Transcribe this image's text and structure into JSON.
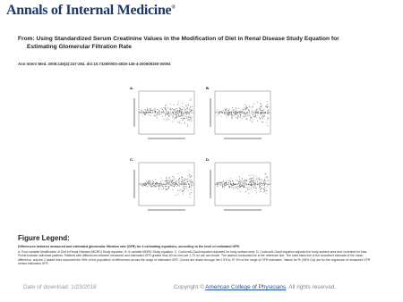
{
  "header": {
    "logo": "Annals of Internal Medicine",
    "logo_mark": "®",
    "title": "From: Using Standardized Serum Creatinine Values in the Modification of Diet in Renal Disease Study Equation for Estimating Glomerular Filtration Rate",
    "citation": "Ann Intern Med. 2006;145(4):247-254. doi:10.7326/0003-4819-145-4-200608150-00004"
  },
  "figure": {
    "panels": [
      {
        "label": "A."
      },
      {
        "label": "B."
      },
      {
        "label": "C."
      },
      {
        "label": "D."
      }
    ]
  },
  "legend": {
    "heading": "Figure Legend:",
    "caption": "Differences between measured and estimated glomerular filtration rate (GFR) for 4 estimating equations, according to the level of estimated GFR.",
    "body": "A. Four-variable Modification of Diet in Renal Disease (MDRD) Study equation. B. 6-variable MDRD Study equation. C. Cockcroft–Gault equation adjusted for body surface area. D. Cockcroft–Gault equation adjusted for body surface area and corrected for bias. Points indicate individual patients. Patients with differences between measured and estimated GFR greater than 60 mL/min per 1.73 m² are not shown. The dashed horizontal line is the reference line. The solid black line is the smoothed estimate of the mean difference, and the 2 dotted lines represent the 95% of the population of differences across the range of estimated GFR. Curves are drawn through the 2.5% to 97.5% of the range of GFR estimates. Values for R² (95% CIs) are for the regression of measured GFR versus estimated GFR."
  },
  "footer": {
    "date": "Date of download:  1/23/2018",
    "copyright_prefix": "Copyright © ",
    "publisher": "American College of Physicians",
    "copyright_suffix": ".  All rights reserved."
  }
}
